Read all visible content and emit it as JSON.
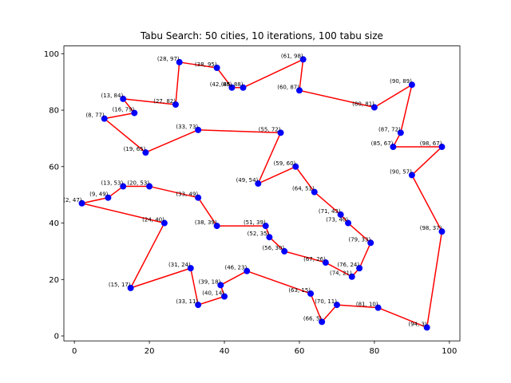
{
  "chart_data": {
    "type": "scatter",
    "title": "Tabu Search: 50 cities, 10 iterations, 100 tabu size",
    "xlabel": "",
    "ylabel": "",
    "xlim": [
      -2.8,
      102.8
    ],
    "ylim": [
      -1.75,
      102.75
    ],
    "xticks": [
      0,
      20,
      40,
      60,
      80,
      100
    ],
    "yticks": [
      0,
      20,
      40,
      60,
      80,
      100
    ],
    "grid": false,
    "legend": "none",
    "point_color": "#0000ff",
    "line_color": "#ff0000",
    "route": [
      {
        "x": 28,
        "y": 97,
        "label": "(28, 97)"
      },
      {
        "x": 38,
        "y": 95,
        "label": "(38, 95)"
      },
      {
        "x": 42,
        "y": 88,
        "label": "(42, 88)"
      },
      {
        "x": 45,
        "y": 88,
        "label": "(45, 88)"
      },
      {
        "x": 61,
        "y": 98,
        "label": "(61, 98)"
      },
      {
        "x": 60,
        "y": 87,
        "label": "(60, 87)"
      },
      {
        "x": 80,
        "y": 81,
        "label": "(80, 81)"
      },
      {
        "x": 90,
        "y": 89,
        "label": "(90, 89)"
      },
      {
        "x": 87,
        "y": 72,
        "label": "(87, 72)"
      },
      {
        "x": 85,
        "y": 67,
        "label": "(85, 67)"
      },
      {
        "x": 98,
        "y": 67,
        "label": "(98, 67)"
      },
      {
        "x": 90,
        "y": 57,
        "label": "(90, 57)"
      },
      {
        "x": 98,
        "y": 37,
        "label": "(98, 37)"
      },
      {
        "x": 94,
        "y": 3,
        "label": "(94, 3)"
      },
      {
        "x": 81,
        "y": 10,
        "label": "(81, 10)"
      },
      {
        "x": 70,
        "y": 11,
        "label": "(70, 11)"
      },
      {
        "x": 66,
        "y": 5,
        "label": "(66, 5)"
      },
      {
        "x": 63,
        "y": 15,
        "label": "(63, 15)"
      },
      {
        "x": 46,
        "y": 23,
        "label": "(46, 23)"
      },
      {
        "x": 39,
        "y": 18,
        "label": "(39, 18)"
      },
      {
        "x": 40,
        "y": 14,
        "label": "(40, 14)"
      },
      {
        "x": 33,
        "y": 11,
        "label": "(33, 11)"
      },
      {
        "x": 31,
        "y": 24,
        "label": "(31, 24)"
      },
      {
        "x": 15,
        "y": 17,
        "label": "(15, 17)"
      },
      {
        "x": 24,
        "y": 40,
        "label": "(24, 40)"
      },
      {
        "x": 2,
        "y": 47,
        "label": "(2, 47)"
      },
      {
        "x": 9,
        "y": 49,
        "label": "(9, 49)"
      },
      {
        "x": 13,
        "y": 53,
        "label": "(13, 53)"
      },
      {
        "x": 20,
        "y": 53,
        "label": "(20, 53)"
      },
      {
        "x": 33,
        "y": 49,
        "label": "(33, 49)"
      },
      {
        "x": 38,
        "y": 39,
        "label": "(38, 39)"
      },
      {
        "x": 51,
        "y": 39,
        "label": "(51, 39)"
      },
      {
        "x": 52,
        "y": 35,
        "label": "(52, 35)"
      },
      {
        "x": 56,
        "y": 30,
        "label": "(56, 30)"
      },
      {
        "x": 67,
        "y": 26,
        "label": "(67, 26)"
      },
      {
        "x": 74,
        "y": 21,
        "label": "(74, 21)"
      },
      {
        "x": 76,
        "y": 24,
        "label": "(76, 24)"
      },
      {
        "x": 79,
        "y": 33,
        "label": "(79, 33)"
      },
      {
        "x": 73,
        "y": 40,
        "label": "(73, 40)"
      },
      {
        "x": 71,
        "y": 43,
        "label": "(71, 43)"
      },
      {
        "x": 64,
        "y": 51,
        "label": "(64, 51)"
      },
      {
        "x": 59,
        "y": 60,
        "label": "(59, 60)"
      },
      {
        "x": 49,
        "y": 54,
        "label": "(49, 54)"
      },
      {
        "x": 55,
        "y": 72,
        "label": "(55, 72)"
      },
      {
        "x": 33,
        "y": 73,
        "label": "(33, 73)"
      },
      {
        "x": 19,
        "y": 65,
        "label": "(19, 65)"
      },
      {
        "x": 8,
        "y": 77,
        "label": "(8, 77)"
      },
      {
        "x": 16,
        "y": 79,
        "label": "(16, 79)"
      },
      {
        "x": 13,
        "y": 84,
        "label": "(13, 84)"
      },
      {
        "x": 27,
        "y": 82,
        "label": "(27, 82)"
      }
    ]
  }
}
